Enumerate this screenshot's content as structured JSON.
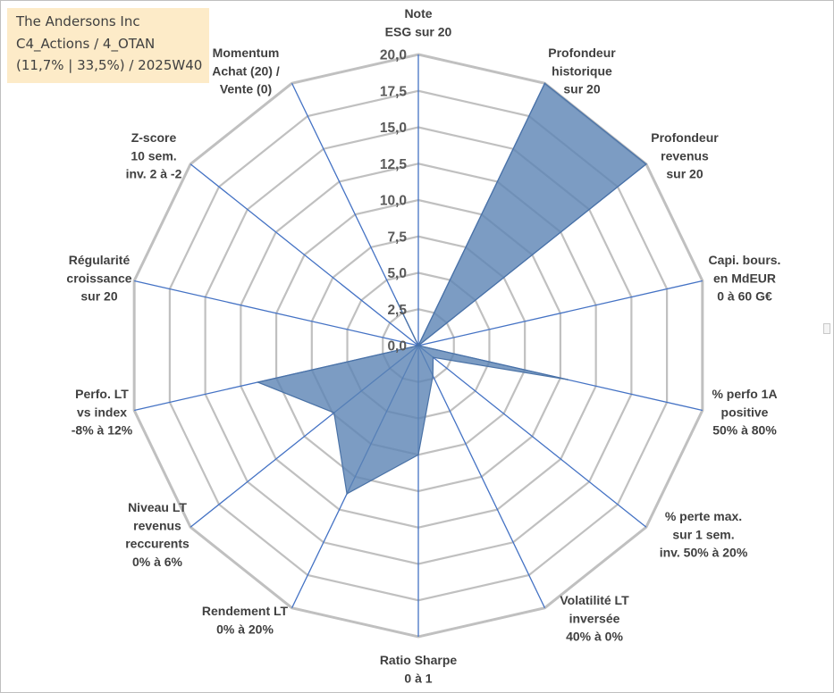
{
  "chart_title": {
    "lines": [
      "The Andersons Inc",
      "C4_Actions / 4_OTAN",
      "(11,7% | 33,5%) / 2025W40"
    ]
  },
  "chart_data": {
    "type": "radar",
    "rmax": 20,
    "tick_step": 2.5,
    "ticks": [
      "0,0",
      "2,5",
      "5,0",
      "7,5",
      "10,0",
      "12,5",
      "15,0",
      "17,5",
      "20,0"
    ],
    "axes": [
      {
        "label": [
          "Note",
          "ESG sur 20"
        ]
      },
      {
        "label": [
          "Profondeur",
          "historique",
          "sur 20"
        ]
      },
      {
        "label": [
          "Profondeur",
          "revenus",
          "sur 20"
        ]
      },
      {
        "label": [
          "Capi. bours.",
          "en MdEUR",
          "0 à 60 G€"
        ]
      },
      {
        "label": [
          "% perfo 1A",
          "positive",
          "50% à 80%"
        ]
      },
      {
        "label": [
          "% perte max.",
          "sur 1 sem.",
          "inv. 50% à 20%"
        ]
      },
      {
        "label": [
          "Volatilité LT",
          "inversée",
          "40% à 0%"
        ]
      },
      {
        "label": [
          "Ratio Sharpe",
          "0 à 1"
        ]
      },
      {
        "label": [
          "Rendement LT",
          "0% à 20%"
        ]
      },
      {
        "label": [
          "Niveau LT",
          "revenus",
          "reccurents",
          "0% à 6%"
        ]
      },
      {
        "label": [
          "Perfo. LT",
          "vs index",
          "-8% à 12%"
        ]
      },
      {
        "label": [
          "Régularité",
          "croissance",
          "sur 20"
        ]
      },
      {
        "label": [
          "Z-score",
          "10 sem.",
          "inv. 2 à -2"
        ]
      },
      {
        "label": [
          "Momentum",
          "Achat (20) /",
          "Vente (0)"
        ]
      }
    ],
    "series": [
      {
        "values": [
          0,
          20,
          20,
          0,
          10.5,
          1.3,
          2.3,
          7.5,
          11.3,
          7.4,
          11.3,
          0,
          0,
          3.4
        ]
      }
    ],
    "colors": {
      "fill": "#5b83b4",
      "fill_opacity": 0.8,
      "stroke": "#4a72a6",
      "grid": "#c0c0c0",
      "spoke": "#4472c4"
    },
    "grid": true
  }
}
